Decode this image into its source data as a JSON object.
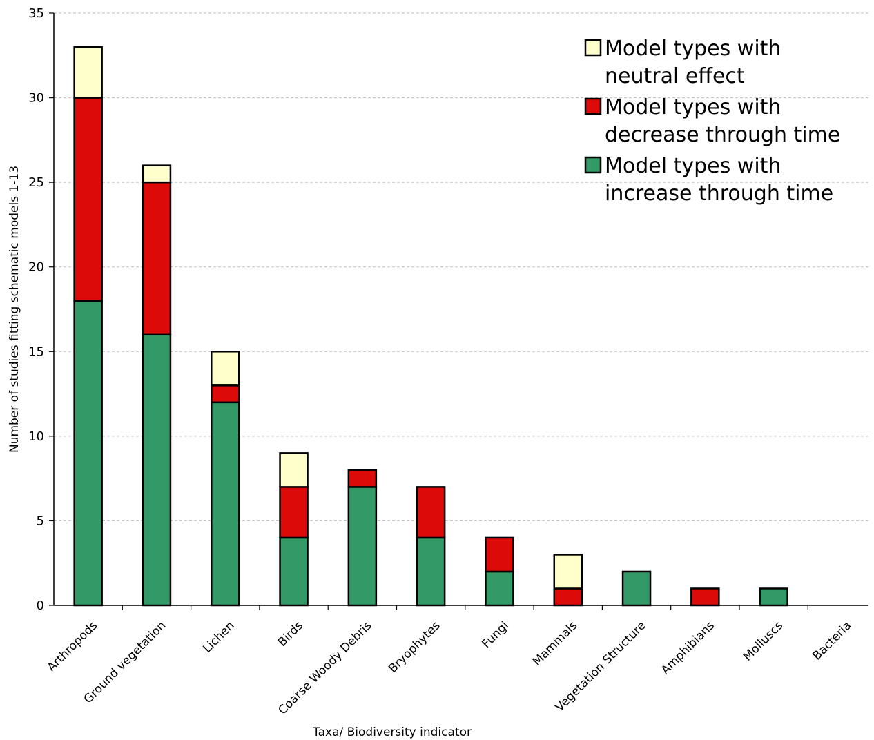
{
  "chart_data": {
    "type": "bar",
    "stacked": true,
    "title": "",
    "xlabel": "Taxa/ Biodiversity indicator",
    "ylabel": "Number of studies fitting schematic models 1-13",
    "ylim": [
      0,
      35
    ],
    "yticks": [
      0,
      5,
      10,
      15,
      20,
      25,
      30,
      35
    ],
    "grid": true,
    "legend_position": "top-right",
    "categories": [
      "Arthropods",
      "Ground vegetation",
      "Lichen",
      "Birds",
      "Coarse Woody Debris",
      "Bryophytes",
      "Fungi",
      "Mammals",
      "Vegetation Structure",
      "Amphibians",
      "Molluscs",
      "Bacteria"
    ],
    "series": [
      {
        "name": "Model types with increase through time",
        "color": "#339966",
        "values": [
          18,
          16,
          12,
          4,
          7,
          4,
          2,
          0,
          2,
          0,
          1,
          0
        ]
      },
      {
        "name": "Model types with decrease through time",
        "color": "#dd0a0a",
        "values": [
          12,
          9,
          1,
          3,
          1,
          3,
          2,
          1,
          0,
          1,
          0,
          0
        ]
      },
      {
        "name": "Model types with neutral effect",
        "color": "#ffffcc",
        "values": [
          3,
          1,
          2,
          2,
          0,
          0,
          0,
          2,
          0,
          0,
          0,
          0
        ]
      }
    ],
    "legend": [
      {
        "line1": "Model types with",
        "line2": "neutral effect",
        "color": "#ffffcc"
      },
      {
        "line1": "Model types with",
        "line2": "decrease through time",
        "color": "#dd0a0a"
      },
      {
        "line1": "Model types with",
        "line2": "increase through time",
        "color": "#339966"
      }
    ]
  }
}
